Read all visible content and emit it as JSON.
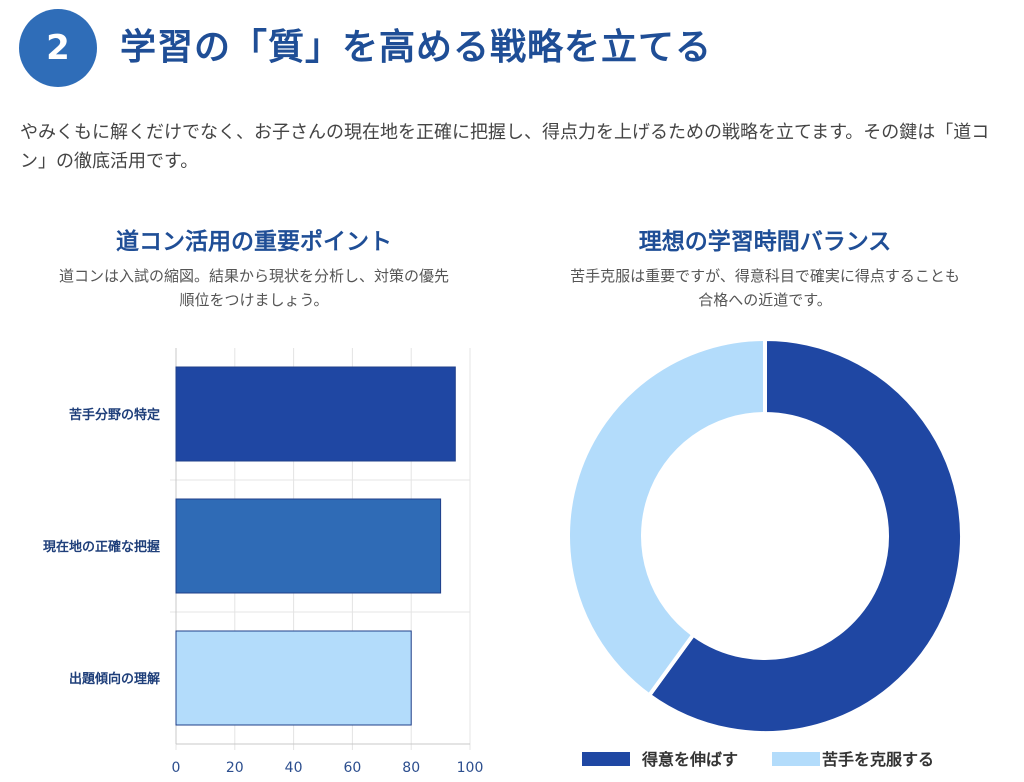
{
  "header": {
    "number": "2",
    "title": "学習の「質」を高める戦略を立てる"
  },
  "intro": "やみくもに解くだけでなく、お子さんの現在地を正確に把握し、得点力を上げるための戦略を立てます。その鍵は「道コン」の徹底活用です。",
  "left_panel": {
    "title": "道コン活用の重要ポイント",
    "subtitle_line1": "道コンは入試の縮図。結果から現状を分析し、対策の優先",
    "subtitle_line2": "順位をつけましょう。"
  },
  "right_panel": {
    "title": "理想の学習時間バランス",
    "subtitle_line1": "苦手克服は重要ですが、得意科目で確実に得点することも",
    "subtitle_line2": "合格への近道です。"
  },
  "chart_data": [
    {
      "type": "bar",
      "orientation": "horizontal",
      "categories": [
        "苦手分野の特定",
        "現在地の正確な把握",
        "出題傾向の理解"
      ],
      "values": [
        95,
        90,
        80
      ],
      "colors": [
        "#1f47a3",
        "#2f6bb6",
        "#b3dcfb"
      ],
      "xlim": [
        0,
        100
      ],
      "xticks": [
        0,
        20,
        40,
        60,
        80,
        100
      ],
      "grid": true
    },
    {
      "type": "pie",
      "style": "donut",
      "labels": [
        "得意を伸ばす",
        "苦手を克服する"
      ],
      "values": [
        60,
        40
      ],
      "colors": [
        "#1f47a3",
        "#b3dcfb"
      ],
      "legend": "bottom"
    }
  ]
}
